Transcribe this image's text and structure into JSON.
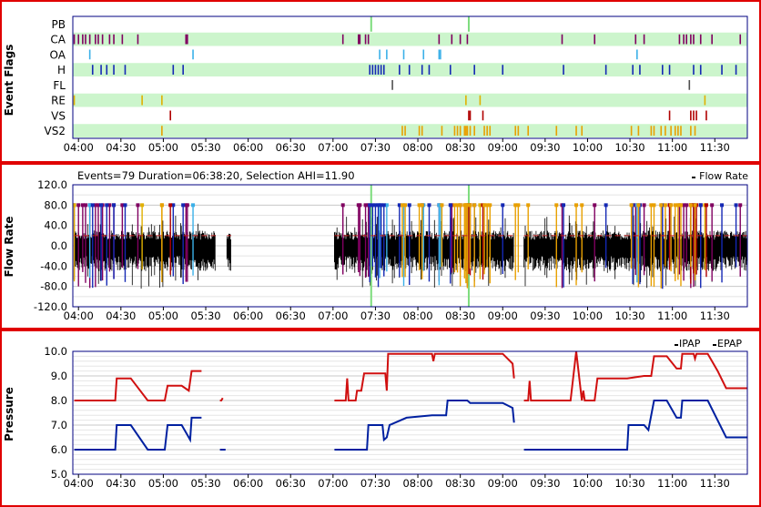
{
  "colors": {
    "border": "#e00000",
    "band": "#ccf5cc",
    "grid": "#c8c8c8",
    "vline": "#7ddc7d",
    "CA": "#800060",
    "OA": "#3ab0e8",
    "H": "#1428b4",
    "FL": "#505050",
    "RE": "#e0b000",
    "VS": "#b00000",
    "VS2": "#e8a000",
    "flow": "#000000",
    "ipap": "#d01010",
    "epap": "#0020a0"
  },
  "x_ticks": [
    "04:00",
    "04:30",
    "05:00",
    "05:30",
    "06:00",
    "06:30",
    "07:00",
    "07:30",
    "08:00",
    "08:30",
    "09:00",
    "09:30",
    "10:00",
    "10:30",
    "11:00",
    "11:30"
  ],
  "panels": {
    "flags": {
      "ylabel": "Event Flags",
      "rows": [
        "PB",
        "CA",
        "OA",
        "H",
        "FL",
        "RE",
        "VS",
        "VS2"
      ]
    },
    "flow": {
      "ylabel": "Flow Rate",
      "info": "Events=79 Duration=06:38:20, Selection AHI=11.90",
      "legend": "Flow Rate",
      "y_ticks": [
        "120.0",
        "80.0",
        "40.0",
        "0.0",
        "-40.0",
        "-80.0",
        "-120.0"
      ]
    },
    "pressure": {
      "ylabel": "Pressure",
      "legend_ipap": "IPAP",
      "legend_epap": "EPAP",
      "y_ticks": [
        "10.0",
        "9.0",
        "8.0",
        "7.0",
        "6.0",
        "5.0"
      ]
    }
  },
  "chart_data": [
    {
      "type": "scatter",
      "title": "",
      "ylabel": "Event Flags",
      "x_range": [
        "03:56",
        "11:53"
      ],
      "flag_times": {
        "PB": [
          "07:27",
          "08:36"
        ],
        "CA": [
          "03:57",
          "04:00",
          "04:03",
          "04:05",
          "04:08",
          "04:12",
          "04:14",
          "04:17",
          "04:22",
          "04:25",
          "04:31",
          "04:42",
          "05:16",
          "05:17",
          "07:07",
          "07:18",
          "07:19",
          "07:23",
          "07:25",
          "08:15",
          "08:24",
          "08:30",
          "08:35",
          "09:42",
          "10:05",
          "10:34",
          "10:40",
          "11:05",
          "11:08",
          "11:10",
          "11:13",
          "11:15",
          "11:20",
          "11:28",
          "11:48"
        ],
        "OA": [
          "04:08",
          "05:21",
          "07:33",
          "07:38",
          "07:50",
          "08:04",
          "08:15",
          "08:16",
          "10:35"
        ],
        "H": [
          "04:10",
          "04:16",
          "04:20",
          "04:25",
          "04:33",
          "05:07",
          "05:14",
          "07:26",
          "07:28",
          "07:30",
          "07:32",
          "07:34",
          "07:36",
          "07:47",
          "07:54",
          "08:03",
          "08:08",
          "08:23",
          "08:40",
          "09:00",
          "09:43",
          "10:13",
          "10:32",
          "10:37",
          "10:53",
          "10:58",
          "11:15",
          "11:20",
          "11:35",
          "11:45"
        ],
        "FL": [
          "07:42",
          "11:12"
        ],
        "RE": [
          "03:57",
          "04:45",
          "04:59",
          "08:34",
          "08:44",
          "11:23"
        ],
        "VS": [
          "05:05",
          "08:36",
          "08:37",
          "08:46",
          "10:58",
          "11:13",
          "11:15",
          "11:17",
          "11:24"
        ],
        "VS2": [
          "04:59",
          "07:49",
          "07:51",
          "08:01",
          "08:03",
          "08:17",
          "08:26",
          "08:28",
          "08:30",
          "08:33",
          "08:34",
          "08:35",
          "08:37",
          "08:40",
          "08:47",
          "08:49",
          "08:51",
          "09:09",
          "09:11",
          "09:18",
          "09:38",
          "09:52",
          "09:56",
          "10:31",
          "10:36",
          "10:45",
          "10:47",
          "10:52",
          "10:55",
          "10:59",
          "11:02",
          "11:04",
          "11:06",
          "11:13",
          "11:16"
        ]
      }
    },
    {
      "type": "line",
      "title": "",
      "ylabel": "Flow Rate",
      "ylim": [
        -120,
        120
      ],
      "grid": true,
      "legend_position": "top-right",
      "series": [
        {
          "name": "Flow Rate"
        }
      ],
      "segments": [
        [
          "03:57",
          "05:37"
        ],
        [
          "05:45",
          "05:48"
        ],
        [
          "07:01",
          "09:08"
        ],
        [
          "09:15",
          "11:53"
        ]
      ],
      "envelope": {
        "upper_typical": 30,
        "lower_typical": -50,
        "upper_peak": 60,
        "lower_peak": -85
      },
      "reference_lines": [
        "07:27",
        "08:36"
      ]
    },
    {
      "type": "line",
      "title": "",
      "ylabel": "Pressure",
      "ylim": [
        5,
        10
      ],
      "grid": true,
      "legend_position": "top-right",
      "series": [
        {
          "name": "IPAP",
          "segments": [
            [
              [
                "03:57",
                8.0
              ],
              [
                "04:26",
                8.0
              ],
              [
                "04:27",
                8.9
              ],
              [
                "04:37",
                8.9
              ],
              [
                "04:49",
                8.0
              ],
              [
                "05:01",
                8.0
              ],
              [
                "05:03",
                8.6
              ],
              [
                "05:13",
                8.6
              ],
              [
                "05:18",
                8.4
              ],
              [
                "05:20",
                9.2
              ],
              [
                "05:27",
                9.2
              ]
            ],
            [
              [
                "05:40",
                8.0
              ],
              [
                "05:41",
                8.0
              ],
              [
                "05:42",
                8.1
              ]
            ],
            [
              [
                "07:01",
                8.0
              ],
              [
                "07:09",
                8.0
              ],
              [
                "07:10",
                8.9
              ],
              [
                "07:11",
                8.0
              ],
              [
                "07:16",
                8.0
              ],
              [
                "07:17",
                8.4
              ],
              [
                "07:20",
                8.4
              ],
              [
                "07:22",
                9.1
              ],
              [
                "07:37",
                9.1
              ],
              [
                "07:38",
                8.4
              ],
              [
                "07:39",
                9.9
              ],
              [
                "07:52",
                9.9
              ],
              [
                "08:10",
                9.9
              ],
              [
                "08:11",
                9.6
              ],
              [
                "08:12",
                9.9
              ],
              [
                "08:25",
                9.9
              ],
              [
                "08:26",
                9.9
              ],
              [
                "09:00",
                9.9
              ],
              [
                "09:07",
                9.5
              ],
              [
                "09:08",
                8.9
              ]
            ],
            [
              [
                "09:15",
                8.0
              ],
              [
                "09:18",
                8.0
              ],
              [
                "09:19",
                8.8
              ],
              [
                "09:20",
                8.0
              ],
              [
                "09:48",
                8.0
              ],
              [
                "09:52",
                10.0
              ],
              [
                "09:56",
                8.0
              ],
              [
                "09:57",
                8.4
              ],
              [
                "09:58",
                8.0
              ],
              [
                "10:00",
                8.0
              ],
              [
                "10:01",
                8.0
              ],
              [
                "10:05",
                8.0
              ],
              [
                "10:07",
                8.9
              ],
              [
                "10:26",
                8.9
              ],
              [
                "10:28",
                8.9
              ],
              [
                "10:40",
                9.0
              ],
              [
                "10:45",
                9.0
              ],
              [
                "10:47",
                9.8
              ],
              [
                "10:56",
                9.8
              ],
              [
                "11:03",
                9.3
              ],
              [
                "11:06",
                9.3
              ],
              [
                "11:07",
                9.9
              ],
              [
                "11:15",
                9.9
              ],
              [
                "11:16",
                9.7
              ],
              [
                "11:17",
                9.9
              ],
              [
                "11:25",
                9.9
              ],
              [
                "11:32",
                9.2
              ],
              [
                "11:38",
                8.5
              ],
              [
                "11:53",
                8.5
              ]
            ]
          ]
        },
        {
          "name": "EPAP",
          "segments": [
            [
              [
                "03:57",
                6.0
              ],
              [
                "04:26",
                6.0
              ],
              [
                "04:27",
                7.0
              ],
              [
                "04:37",
                7.0
              ],
              [
                "04:49",
                6.0
              ],
              [
                "05:01",
                6.0
              ],
              [
                "05:03",
                7.0
              ],
              [
                "05:13",
                7.0
              ],
              [
                "05:17",
                6.6
              ],
              [
                "05:19",
                6.4
              ],
              [
                "05:20",
                7.3
              ],
              [
                "05:27",
                7.3
              ]
            ],
            [
              [
                "05:40",
                6.0
              ],
              [
                "05:44",
                6.0
              ]
            ],
            [
              [
                "07:01",
                6.0
              ],
              [
                "07:24",
                6.0
              ],
              [
                "07:25",
                7.0
              ],
              [
                "07:35",
                7.0
              ],
              [
                "07:36",
                6.4
              ],
              [
                "07:38",
                6.5
              ],
              [
                "07:40",
                7.0
              ],
              [
                "07:52",
                7.3
              ],
              [
                "08:10",
                7.4
              ],
              [
                "08:20",
                7.4
              ],
              [
                "08:21",
                8.0
              ],
              [
                "08:35",
                8.0
              ],
              [
                "08:37",
                7.9
              ],
              [
                "09:00",
                7.9
              ],
              [
                "09:07",
                7.7
              ],
              [
                "09:08",
                7.1
              ]
            ],
            [
              [
                "09:15",
                6.0
              ],
              [
                "10:28",
                6.0
              ],
              [
                "10:29",
                7.0
              ],
              [
                "10:40",
                7.0
              ],
              [
                "10:43",
                6.8
              ],
              [
                "10:47",
                8.0
              ],
              [
                "10:56",
                8.0
              ],
              [
                "11:03",
                7.3
              ],
              [
                "11:06",
                7.3
              ],
              [
                "11:07",
                8.0
              ],
              [
                "11:15",
                8.0
              ],
              [
                "11:25",
                8.0
              ],
              [
                "11:38",
                6.5
              ],
              [
                "11:53",
                6.5
              ]
            ]
          ]
        }
      ]
    }
  ]
}
